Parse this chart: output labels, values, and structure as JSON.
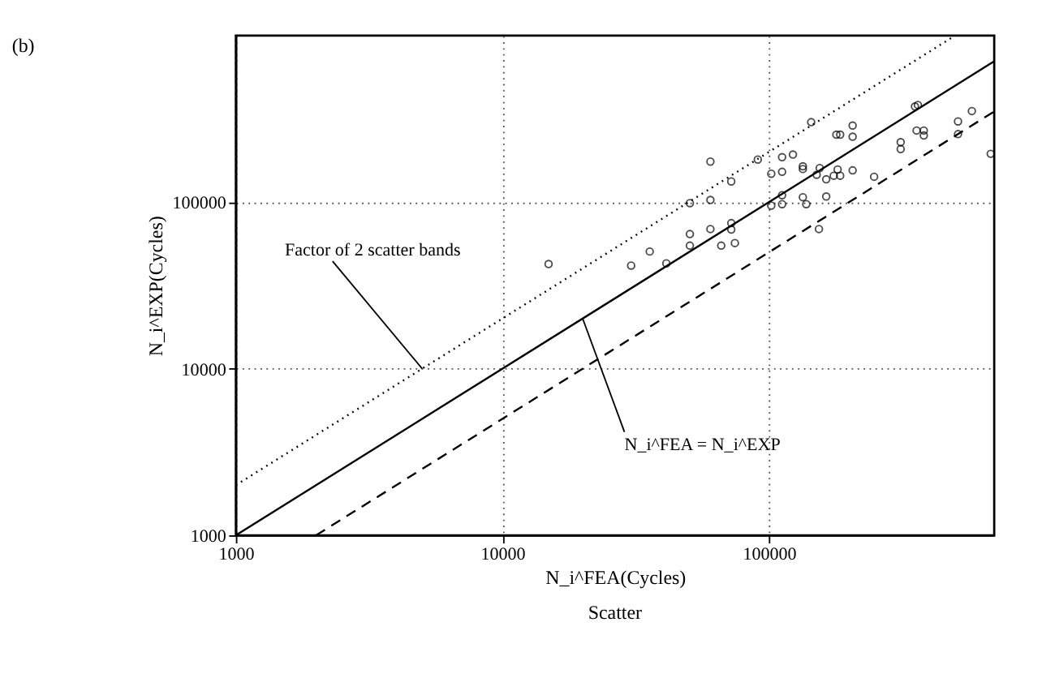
{
  "chart_data": {
    "type": "scatter",
    "title": "(b)",
    "xlabel": "N_i^FEA(Cycles)",
    "ylabel": "N_i^EXP(Cycles)",
    "annotations": [
      {
        "text": "Factor of 2 scatter bands",
        "x": 5000,
        "y": 10000
      },
      {
        "text": "N_i^FEA = N_i^EXP",
        "x": 20000,
        "y": 20000
      },
      "Scatter"
    ],
    "xlim": [
      1000,
      700000
    ],
    "ylim": [
      1000,
      1000000
    ],
    "xticks": [
      1000,
      10000,
      100000
    ],
    "yticks": [
      1000,
      10000,
      100000
    ],
    "log": "xy",
    "grid": true,
    "series": [
      {
        "color": "#000000",
        "marker": "circle",
        "x": [
          14900,
          30400,
          35700,
          41200,
          50500,
          50500,
          50500,
          60300,
          60300,
          60300,
          66200,
          72200,
          72200,
          72200,
          74500,
          90800,
          102000,
          102000,
          112000,
          112000,
          112000,
          112000,
          123000,
          134000,
          134000,
          134000,
          138000,
          144000,
          154000,
          151000,
          155000,
          164000,
          164000,
          175000,
          181000,
          185000,
          179000,
          185000,
          206000,
          206000,
          206000,
          248000,
          312000,
          312000,
          353000,
          362000,
          358000,
          381000,
          381000,
          512000,
          512000,
          577000,
          679000
        ],
        "values": [
          42500,
          41600,
          50500,
          42900,
          64300,
          54800,
          98600,
          175000,
          103000,
          68900,
          54800,
          133000,
          74800,
          68400,
          56800,
          180000,
          148000,
          95300,
          186000,
          152000,
          110000,
          97200,
          193000,
          164000,
          158000,
          107000,
          97200,
          302000,
          68900,
          146000,
          160000,
          137000,
          108000,
          144000,
          157000,
          144000,
          254000,
          254000,
          288000,
          247000,
          155000,
          142000,
          229000,
          208000,
          375000,
          383000,
          269000,
          269000,
          251000,
          305000,
          256000,
          352000,
          195000
        ]
      },
      {
        "type": "line",
        "color": "#000000",
        "line_style": "dotted",
        "x": [
          1000,
          500000
        ],
        "values": [
          2000,
          1000000
        ]
      },
      {
        "type": "line",
        "color": "#000000",
        "line_style": "solid",
        "x": [
          1000,
          700000
        ],
        "values": [
          1000,
          700000
        ]
      },
      {
        "type": "line",
        "color": "#000000",
        "line_style": "dashed",
        "x": [
          2000,
          700000
        ],
        "values": [
          1000,
          350000
        ]
      }
    ]
  }
}
